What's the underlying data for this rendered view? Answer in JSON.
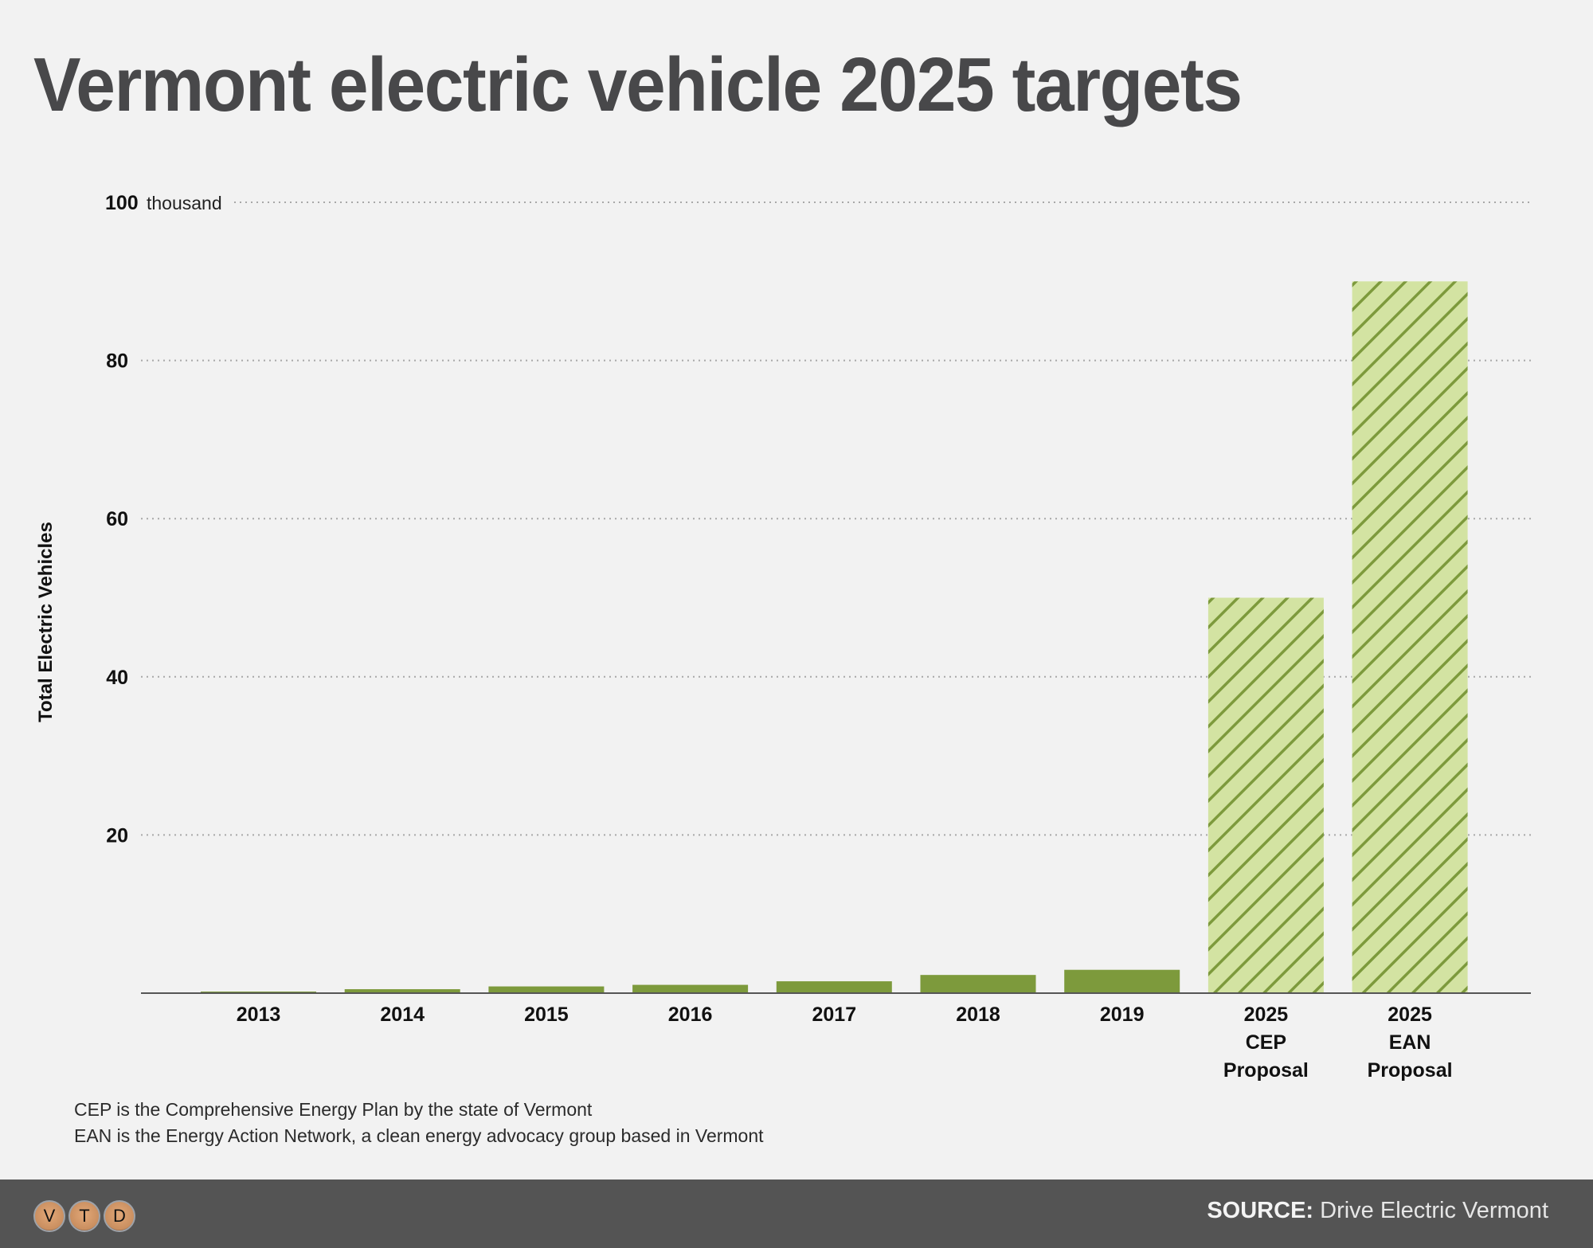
{
  "title": "Vermont electric vehicle 2025 targets",
  "notes": [
    "CEP is the Comprehensive Energy Plan by the state of Vermont",
    "EAN is the Energy Action Network, a clean energy advocacy group based in Vermont"
  ],
  "footer": {
    "logo_letters": [
      "V",
      "T",
      "D"
    ],
    "source_label": "SOURCE:",
    "source_value": "Drive Electric Vermont"
  },
  "colors": {
    "background": "#f2f2f2",
    "bar_actual": "#7d9a3c",
    "bar_target_fill": "#d3e3a2",
    "bar_target_hatch": "#7d9a3c",
    "title": "#48484a",
    "footer_bg": "#545454"
  },
  "chart_data": {
    "type": "bar",
    "title": "Vermont electric vehicle 2025 targets",
    "xlabel": "",
    "ylabel": "Total Electric Vehicles",
    "y_unit_suffix": "thousand",
    "ylim": [
      0,
      100
    ],
    "yticks": [
      20,
      40,
      60,
      80,
      100
    ],
    "ytick_labels": [
      "20",
      "40",
      "60",
      "80",
      "100"
    ],
    "grid": true,
    "categories": [
      [
        "2013"
      ],
      [
        "2014"
      ],
      [
        "2015"
      ],
      [
        "2016"
      ],
      [
        "2017"
      ],
      [
        "2018"
      ],
      [
        "2019"
      ],
      [
        "2025",
        "CEP",
        "Proposal"
      ],
      [
        "2025",
        "EAN",
        "Proposal"
      ]
    ],
    "values": [
      0.2,
      0.5,
      0.85,
      1.05,
      1.5,
      2.3,
      2.95,
      50,
      90
    ],
    "bar_styles": [
      "actual",
      "actual",
      "actual",
      "actual",
      "actual",
      "actual",
      "actual",
      "target",
      "target"
    ]
  }
}
